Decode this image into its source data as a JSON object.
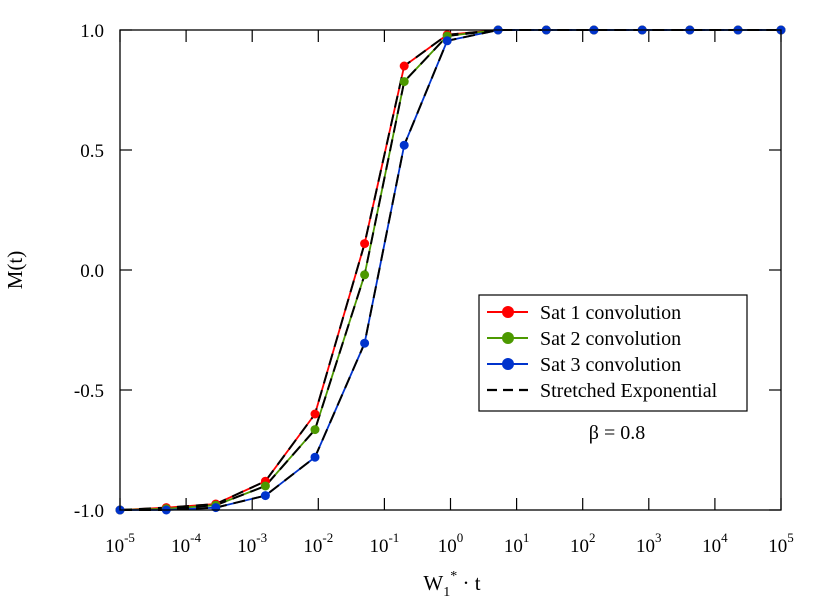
{
  "chart_data": {
    "type": "line",
    "xscale": "log",
    "xlim_exp": [
      -5,
      5
    ],
    "ylim": [
      -1.0,
      1.0
    ],
    "xlabel": {
      "base": "W",
      "sub": "1",
      "sup": "*",
      "rest": " · t"
    },
    "ylabel": "M(t)",
    "x_ticks": [
      {
        "base": "10",
        "exp": "-5",
        "value": -5
      },
      {
        "base": "10",
        "exp": "-4",
        "value": -4
      },
      {
        "base": "10",
        "exp": "-3",
        "value": -3
      },
      {
        "base": "10",
        "exp": "-2",
        "value": -2
      },
      {
        "base": "10",
        "exp": "-1",
        "value": -1
      },
      {
        "base": "10",
        "exp": "0",
        "value": 0
      },
      {
        "base": "10",
        "exp": "1",
        "value": 1
      },
      {
        "base": "10",
        "exp": "2",
        "value": 2
      },
      {
        "base": "10",
        "exp": "3",
        "value": 3
      },
      {
        "base": "10",
        "exp": "4",
        "value": 4
      },
      {
        "base": "10",
        "exp": "5",
        "value": 5
      }
    ],
    "y_ticks": [
      {
        "label": "1.0",
        "value": 1.0
      },
      {
        "label": "0.5",
        "value": 0.5
      },
      {
        "label": "0.0",
        "value": 0.0
      },
      {
        "label": "-0.5",
        "value": -0.5
      },
      {
        "label": "-1.0",
        "value": -1.0
      }
    ],
    "x_log10": [
      -5.0,
      -4.3,
      -3.55,
      -2.8,
      -2.05,
      -1.3,
      -0.7,
      -0.05,
      0.72,
      1.45,
      2.17,
      2.9,
      3.62,
      4.35,
      5.0
    ],
    "series": [
      {
        "name": "Sat 1 convolution",
        "color": "#ff0000",
        "style": "solid",
        "values": [
          -1.0,
          -0.99,
          -0.975,
          -0.88,
          -0.6,
          0.11,
          0.85,
          0.98,
          1.0,
          1.0,
          1.0,
          1.0,
          1.0,
          1.0,
          1.0
        ]
      },
      {
        "name": "Sat 2 convolution",
        "color": "#4c9900",
        "style": "solid",
        "values": [
          -1.0,
          -0.995,
          -0.98,
          -0.9,
          -0.665,
          -0.02,
          0.785,
          0.975,
          1.0,
          1.0,
          1.0,
          1.0,
          1.0,
          1.0,
          1.0
        ]
      },
      {
        "name": "Sat 3 convolution",
        "color": "#0033cc",
        "style": "solid",
        "values": [
          -1.0,
          -1.0,
          -0.99,
          -0.94,
          -0.78,
          -0.305,
          0.52,
          0.955,
          1.0,
          1.0,
          1.0,
          1.0,
          1.0,
          1.0,
          1.0
        ]
      }
    ],
    "fit_lines": [
      {
        "name": "Stretched Exponential",
        "color": "#000000",
        "style": "dashed",
        "applies_to": "all"
      }
    ],
    "legend": {
      "position": "center-right",
      "entries": [
        {
          "label": "Sat 1 convolution",
          "color": "#ff0000",
          "marker": "circle"
        },
        {
          "label": "Sat 2 convolution",
          "color": "#4c9900",
          "marker": "circle"
        },
        {
          "label": "Sat 3 convolution",
          "color": "#0033cc",
          "marker": "circle"
        },
        {
          "label": "Stretched Exponential",
          "color": "#000000",
          "marker": "dash"
        }
      ]
    },
    "annotation": "β = 0.8"
  }
}
